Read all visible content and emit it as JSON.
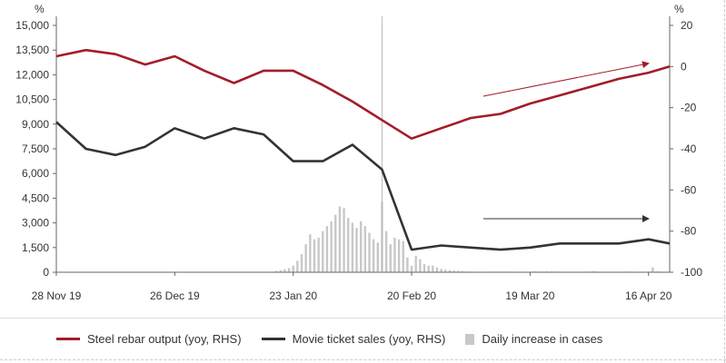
{
  "chart_data": {
    "type": "line",
    "left_axis_unit": "%",
    "right_axis_unit": "%",
    "left_ylim": [
      0,
      15000
    ],
    "right_ylim": [
      -100,
      20
    ],
    "left_ticks": [
      "15,000",
      "13,500",
      "12,000",
      "10,500",
      "9,000",
      "7,500",
      "6,000",
      "4,500",
      "3,000",
      "1,500",
      "0"
    ],
    "right_ticks": [
      "20",
      "0",
      "-20",
      "-40",
      "-60",
      "-80",
      "-100"
    ],
    "x_ticks": [
      "28 Nov 19",
      "26 Dec 19",
      "23 Jan 20",
      "20 Feb 20",
      "19 Mar 20",
      "16 Apr 20"
    ],
    "x_range_days": [
      0,
      145
    ],
    "x_tick_days": [
      0,
      28,
      56,
      84,
      112,
      140
    ],
    "annotation_day": 77,
    "series": [
      {
        "name": "Steel rebar output (yoy, RHS)",
        "axis": "right",
        "color": "#a31c2a",
        "days": [
          0,
          7,
          14,
          21,
          28,
          35,
          42,
          49,
          56,
          63,
          70,
          77,
          84,
          91,
          98,
          105,
          112,
          119,
          126,
          133,
          140,
          145
        ],
        "values": [
          5,
          8,
          6,
          1,
          5,
          -2,
          -8,
          -2,
          -2,
          -9,
          -17,
          -26,
          -35,
          -30,
          -25,
          -23,
          -18,
          -14,
          -10,
          -6,
          -3,
          0
        ]
      },
      {
        "name": "Movie ticket sales (yoy, RHS)",
        "axis": "right",
        "color": "#333333",
        "days": [
          0,
          7,
          14,
          21,
          28,
          35,
          42,
          49,
          56,
          63,
          70,
          77,
          84,
          91,
          98,
          105,
          112,
          119,
          126,
          133,
          140,
          145
        ],
        "values": [
          -27,
          -40,
          -43,
          -39,
          -30,
          -35,
          -30,
          -33,
          -46,
          -46,
          -38,
          -50,
          -89,
          -87,
          -88,
          -89,
          -88,
          -86,
          -86,
          -86,
          -84,
          -86
        ]
      },
      {
        "name": "Daily increase in cases",
        "axis": "left",
        "color": "#c8c8c8",
        "type": "bar",
        "days": [
          52,
          53,
          54,
          55,
          56,
          57,
          58,
          59,
          60,
          61,
          62,
          63,
          64,
          65,
          66,
          67,
          68,
          69,
          70,
          71,
          72,
          73,
          74,
          75,
          76,
          77,
          78,
          79,
          80,
          81,
          82,
          83,
          84,
          85,
          86,
          87,
          88,
          89,
          90,
          91,
          92,
          93,
          94,
          95,
          96,
          97,
          98,
          99,
          100,
          101,
          102,
          103,
          104,
          105,
          106,
          107,
          108,
          109,
          110,
          111,
          112,
          113,
          114,
          115,
          116,
          117,
          118,
          119,
          120,
          121,
          122,
          123,
          124,
          125,
          126,
          127,
          128,
          129,
          130,
          131,
          132,
          133,
          134,
          135,
          136,
          137,
          138,
          139,
          140,
          141,
          142,
          143,
          144,
          145
        ],
        "values": [
          80,
          130,
          180,
          250,
          400,
          700,
          1100,
          1700,
          2300,
          2000,
          2100,
          2500,
          2800,
          3100,
          3500,
          4000,
          3900,
          3300,
          3000,
          2700,
          3100,
          2800,
          2400,
          2000,
          1800,
          4300,
          2500,
          1700,
          2100,
          2000,
          1900,
          900,
          400,
          1000,
          800,
          500,
          400,
          400,
          300,
          200,
          150,
          120,
          100,
          80,
          60,
          40,
          40,
          30,
          20,
          20,
          30,
          30,
          40,
          30,
          40,
          20,
          30,
          20,
          20,
          30,
          40,
          60,
          40,
          40,
          50,
          40,
          40,
          30,
          30,
          30,
          20,
          20,
          20,
          30,
          40,
          60,
          40,
          30,
          30,
          20,
          30,
          20,
          30,
          40,
          30,
          20,
          30,
          30,
          40,
          300,
          50,
          40,
          30,
          30
        ]
      }
    ]
  },
  "legend": {
    "steel": "Steel rebar output (yoy, RHS)",
    "movie": "Movie ticket sales (yoy, RHS)",
    "cases": "Daily increase in cases"
  }
}
